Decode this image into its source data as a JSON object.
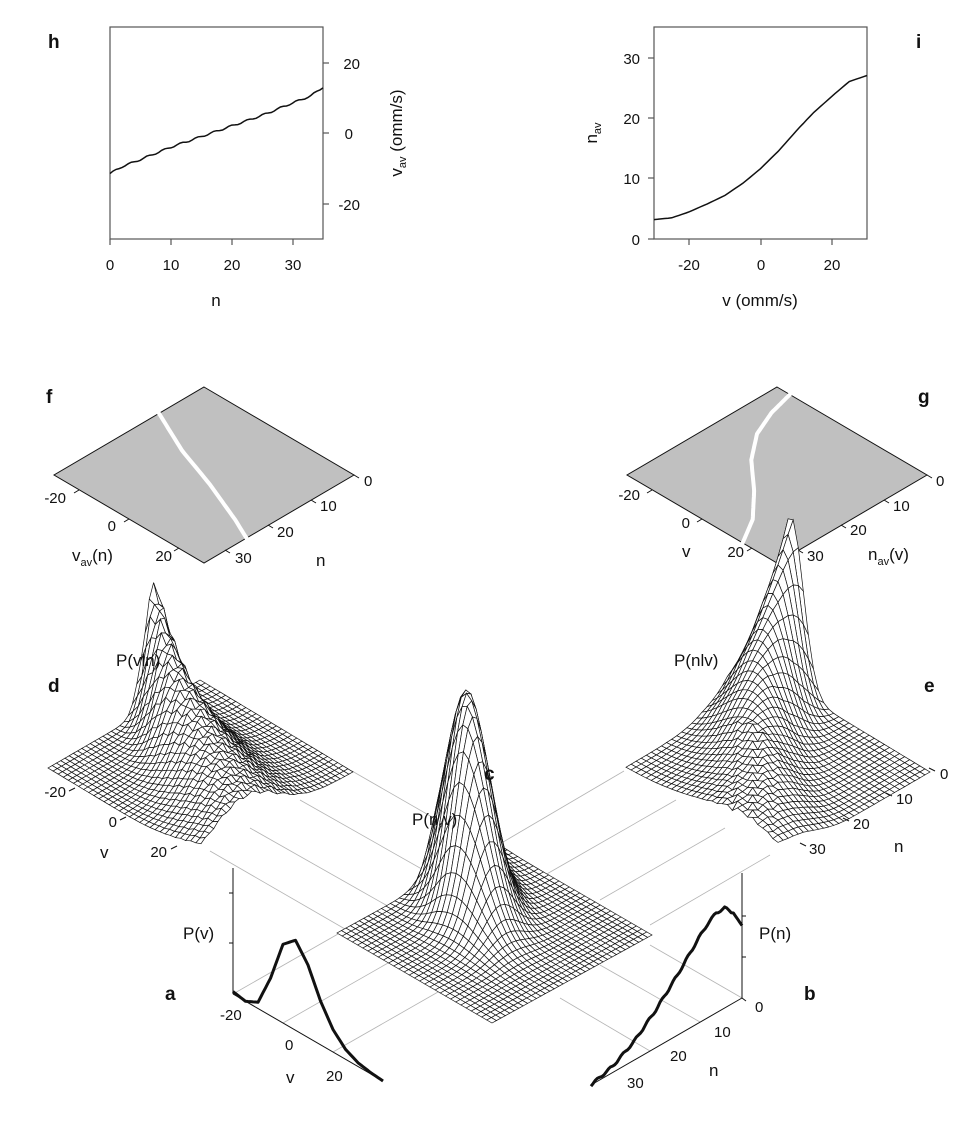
{
  "figure": {
    "panels": {
      "a": {
        "letter": "a",
        "title": "P(v)",
        "axis_label": "v",
        "ticks": [
          "-20",
          "0",
          "20"
        ]
      },
      "b": {
        "letter": "b",
        "title": "P(n)",
        "axis_label": "n",
        "ticks": [
          "0",
          "10",
          "20",
          "30"
        ]
      },
      "c": {
        "letter": "c",
        "title": "P(n,v)"
      },
      "d": {
        "letter": "d",
        "title": "P(v|n)",
        "title_display": "P(vln)",
        "axis_label": "v",
        "ticks": [
          "-20",
          "0",
          "20"
        ]
      },
      "e": {
        "letter": "e",
        "title": "P(n|v)",
        "title_display": "P(nlv)",
        "axis_label": "n",
        "ticks": [
          "0",
          "10",
          "20",
          "30"
        ]
      },
      "f": {
        "letter": "f",
        "v_label": "v",
        "v_sub": "av",
        "v_suffix": "(n)",
        "n_label": "n",
        "v_ticks": [
          "-20",
          "0",
          "20"
        ],
        "n_ticks": [
          "0",
          "10",
          "20",
          "30"
        ]
      },
      "g": {
        "letter": "g",
        "v_label": "v",
        "n_label": "n",
        "n_sub": "av",
        "n_suffix": "(v)",
        "v_ticks": [
          "-20",
          "0",
          "20"
        ],
        "n_ticks": [
          "0",
          "10",
          "20",
          "30"
        ]
      },
      "h": {
        "letter": "h",
        "xlabel": "n",
        "ylabel_main": "v",
        "ylabel_sub": "av",
        "ylabel_unit": " (omm/s)",
        "xticks": [
          "0",
          "10",
          "20",
          "30"
        ],
        "yticks": [
          "20",
          "0",
          "-20"
        ]
      },
      "i": {
        "letter": "i",
        "xlabel": "v (omm/s)",
        "ylabel_main": "n",
        "ylabel_sub": "av",
        "xticks": [
          "-20",
          "0",
          "20"
        ],
        "yticks": [
          "30",
          "20",
          "10",
          "0"
        ]
      }
    },
    "colors": {
      "ink": "#111111",
      "guide": "#b4b4b4",
      "plane": "#c0c0c0",
      "ridge": "#ffffff"
    }
  },
  "chart_data": [
    {
      "panel": "h",
      "type": "line",
      "title": "",
      "xlabel": "n",
      "ylabel": "v_av (omm/s)",
      "xlim": [
        0,
        35
      ],
      "ylim": [
        -30,
        30
      ],
      "y_axis_side": "right",
      "grid": false,
      "x": [
        0,
        2,
        5,
        10,
        15,
        20,
        25,
        30,
        33,
        35
      ],
      "y": [
        -11.5,
        -9.5,
        -7.5,
        -4,
        -1,
        2,
        5,
        8.5,
        10.5,
        13
      ]
    },
    {
      "panel": "i",
      "type": "line",
      "title": "",
      "xlabel": "v (omm/s)",
      "ylabel": "n_av",
      "xlim": [
        -30,
        30
      ],
      "ylim": [
        0,
        35
      ],
      "grid": false,
      "x": [
        -30,
        -25,
        -20,
        -15,
        -10,
        -5,
        0,
        5,
        10,
        15,
        20,
        25,
        30
      ],
      "y": [
        3.2,
        3.5,
        4.5,
        5.8,
        7.2,
        9.2,
        11.6,
        14.5,
        17.8,
        20.9,
        23.5,
        26,
        27
      ]
    },
    {
      "panel": "a",
      "type": "line",
      "title": "P(v)",
      "xlabel": "v",
      "xlim": [
        -30,
        30
      ],
      "yunits": "relative (0-1)",
      "x": [
        -30,
        -25,
        -20,
        -15,
        -10,
        -5,
        0,
        5,
        10,
        15,
        20,
        25,
        30
      ],
      "y": [
        0.02,
        0.0,
        0.05,
        0.3,
        0.63,
        0.72,
        0.58,
        0.35,
        0.18,
        0.08,
        0.03,
        0.01,
        0.0
      ]
    },
    {
      "panel": "b",
      "type": "line",
      "title": "P(n)",
      "xlabel": "n",
      "xlim": [
        0,
        35
      ],
      "yunits": "relative (0-1)",
      "x": [
        0,
        2,
        4,
        6,
        8,
        10,
        12,
        15,
        20,
        25,
        30,
        35
      ],
      "y": [
        0.58,
        0.72,
        0.8,
        0.8,
        0.75,
        0.68,
        0.6,
        0.48,
        0.3,
        0.15,
        0.05,
        0.0
      ]
    },
    {
      "panel": "c",
      "type": "heatmap",
      "title": "P(n,v)",
      "description": "3D wireframe surface over n (0-35) and v (-30 to 30); single peak near n≈8, v≈-5"
    },
    {
      "panel": "d",
      "type": "heatmap",
      "title": "P(v|n)",
      "description": "3D wireframe surface; ridge follows v_av(n), peaked at low n"
    },
    {
      "panel": "e",
      "type": "heatmap",
      "title": "P(n|v)",
      "description": "3D wireframe surface; ridge follows n_av(v), tallest at negative v, noisy at large n"
    },
    {
      "panel": "f",
      "type": "line",
      "title": "v_av(n)",
      "description": "ridge line projected on grey plane",
      "n": [
        0,
        10,
        20,
        30,
        35
      ],
      "v": [
        -12,
        -4,
        2,
        9,
        13
      ]
    },
    {
      "panel": "g",
      "type": "line",
      "title": "n_av(v)",
      "description": "ridge line projected on grey plane",
      "v": [
        -30,
        -20,
        -10,
        0,
        10,
        20,
        30
      ],
      "n": [
        3,
        4.5,
        7,
        11.5,
        18,
        23.5,
        27
      ]
    }
  ]
}
